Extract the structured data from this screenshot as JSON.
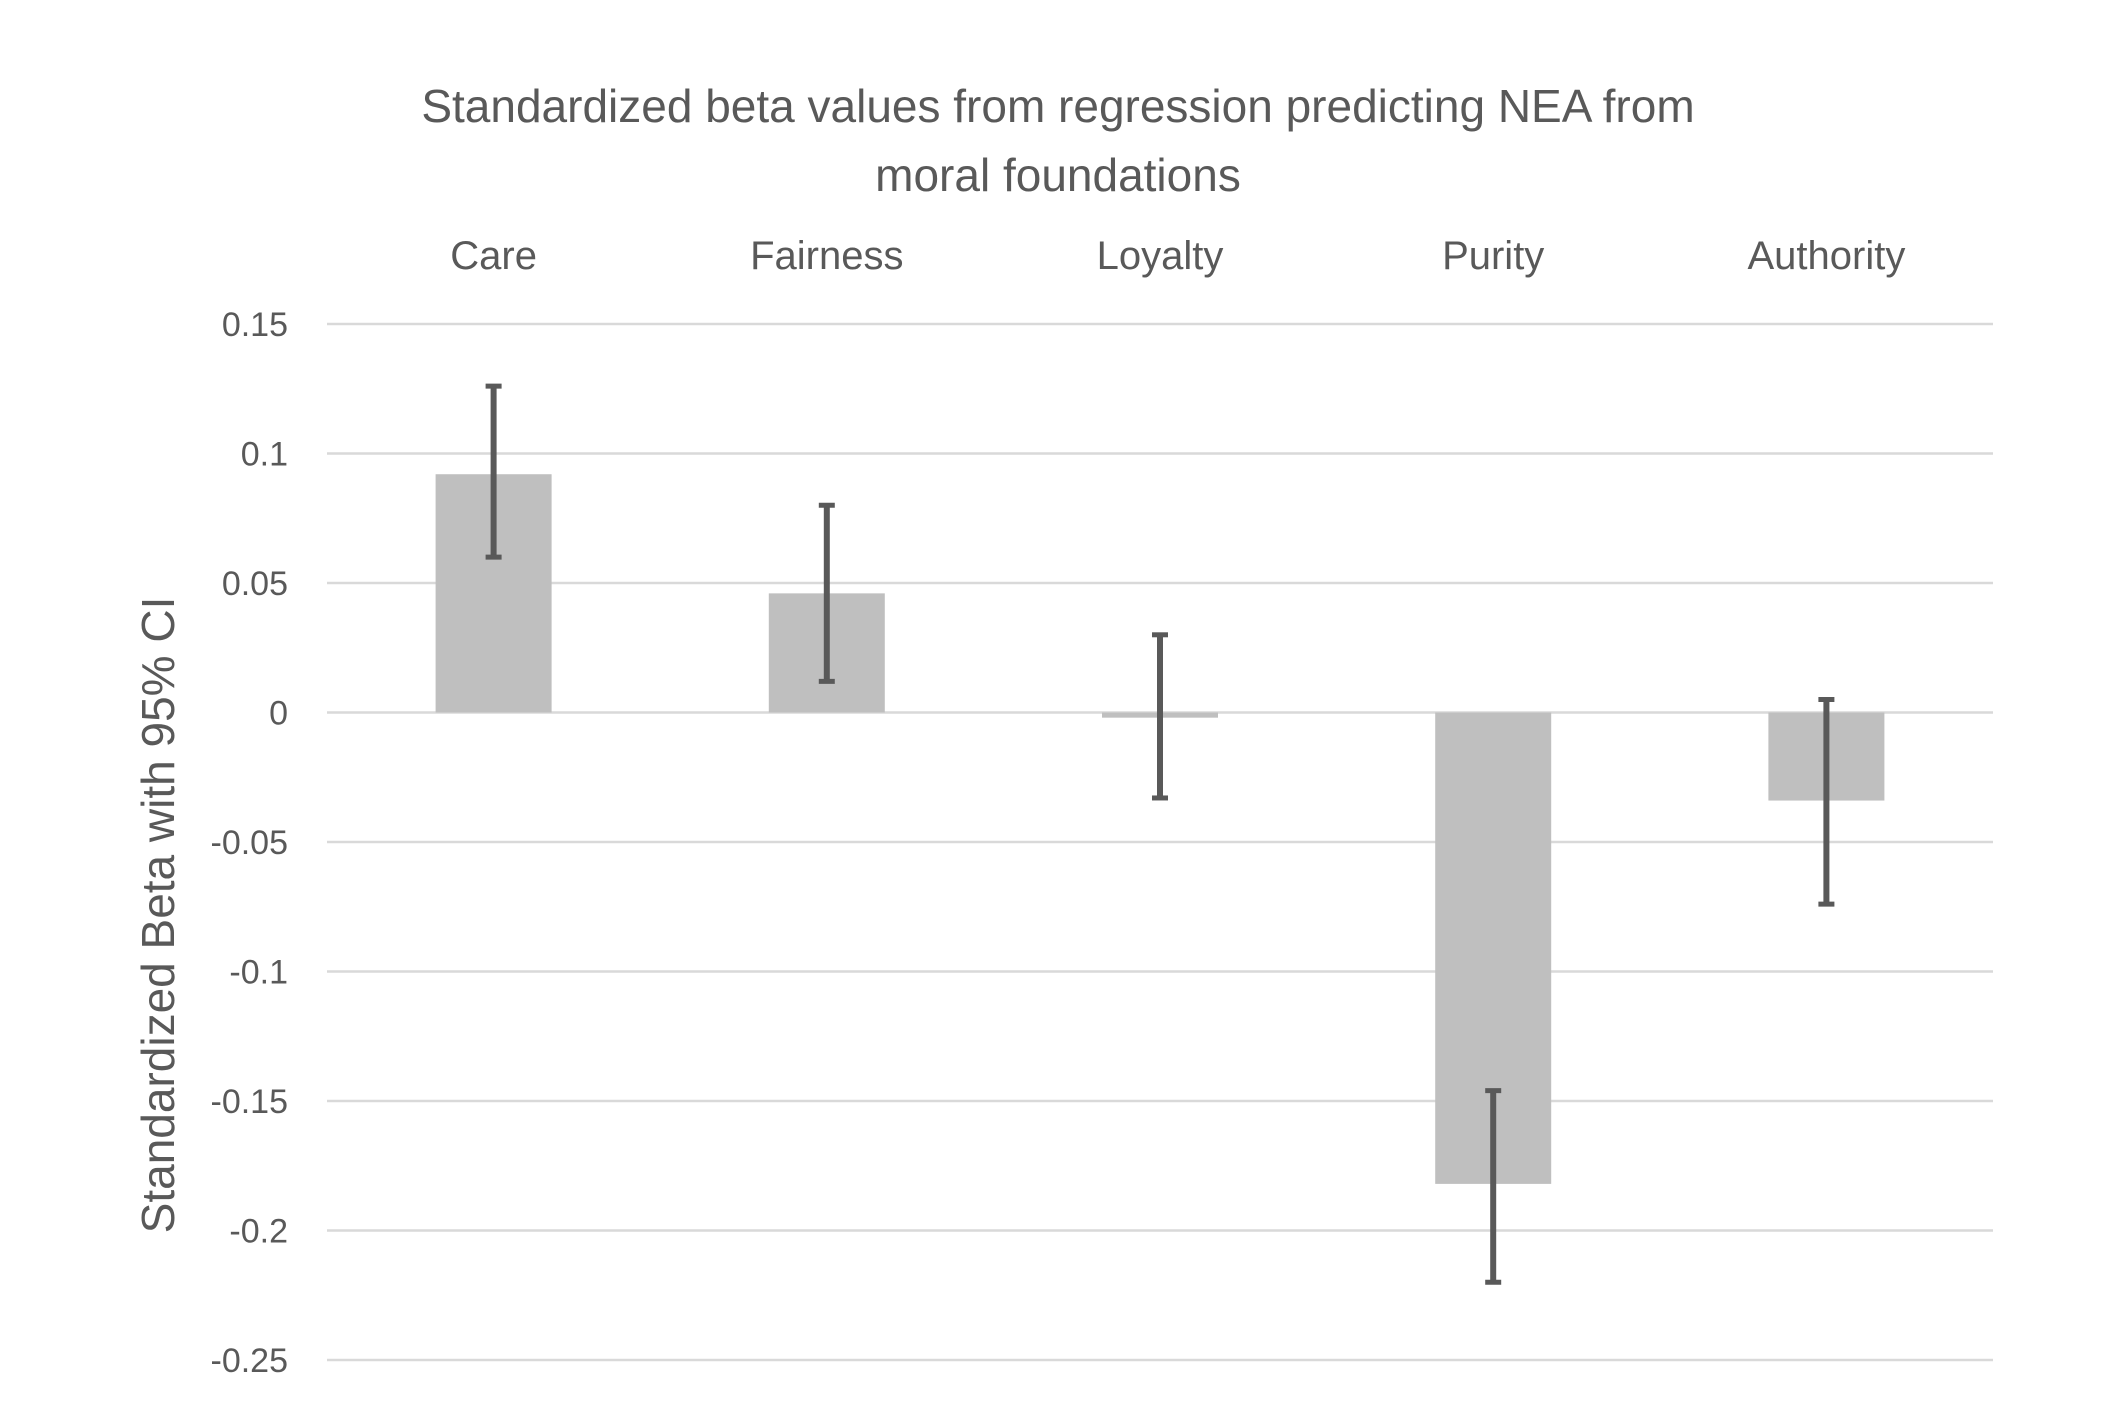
{
  "chart_data": {
    "type": "bar",
    "title_lines": [
      "Standardized beta values from regression predicting NEA from",
      "moral foundations"
    ],
    "xlabel": "",
    "ylabel": "Standardized Beta with 95% CI",
    "categories": [
      "Care",
      "Fairness",
      "Loyalty",
      "Purity",
      "Authority"
    ],
    "values": [
      0.092,
      0.046,
      -0.002,
      -0.182,
      -0.034
    ],
    "ci_lower": [
      0.06,
      0.012,
      -0.033,
      -0.22,
      -0.074
    ],
    "ci_upper": [
      0.126,
      0.08,
      0.03,
      -0.146,
      0.005
    ],
    "ylim": [
      -0.25,
      0.15
    ],
    "yticks": [
      0.15,
      0.1,
      0.05,
      0,
      -0.05,
      -0.1,
      -0.15,
      -0.2,
      -0.25
    ],
    "ytick_labels": [
      "0.15",
      "0.1",
      "0.05",
      "0",
      "-0.05",
      "-0.1",
      "-0.15",
      "-0.2",
      "-0.25"
    ],
    "category_labels_position": "top",
    "grid": true,
    "legend": "none",
    "colors": {
      "bar": "#bfbfbf",
      "error_bar": "#595959",
      "grid": "#d9d9d9",
      "text": "#595959"
    }
  }
}
